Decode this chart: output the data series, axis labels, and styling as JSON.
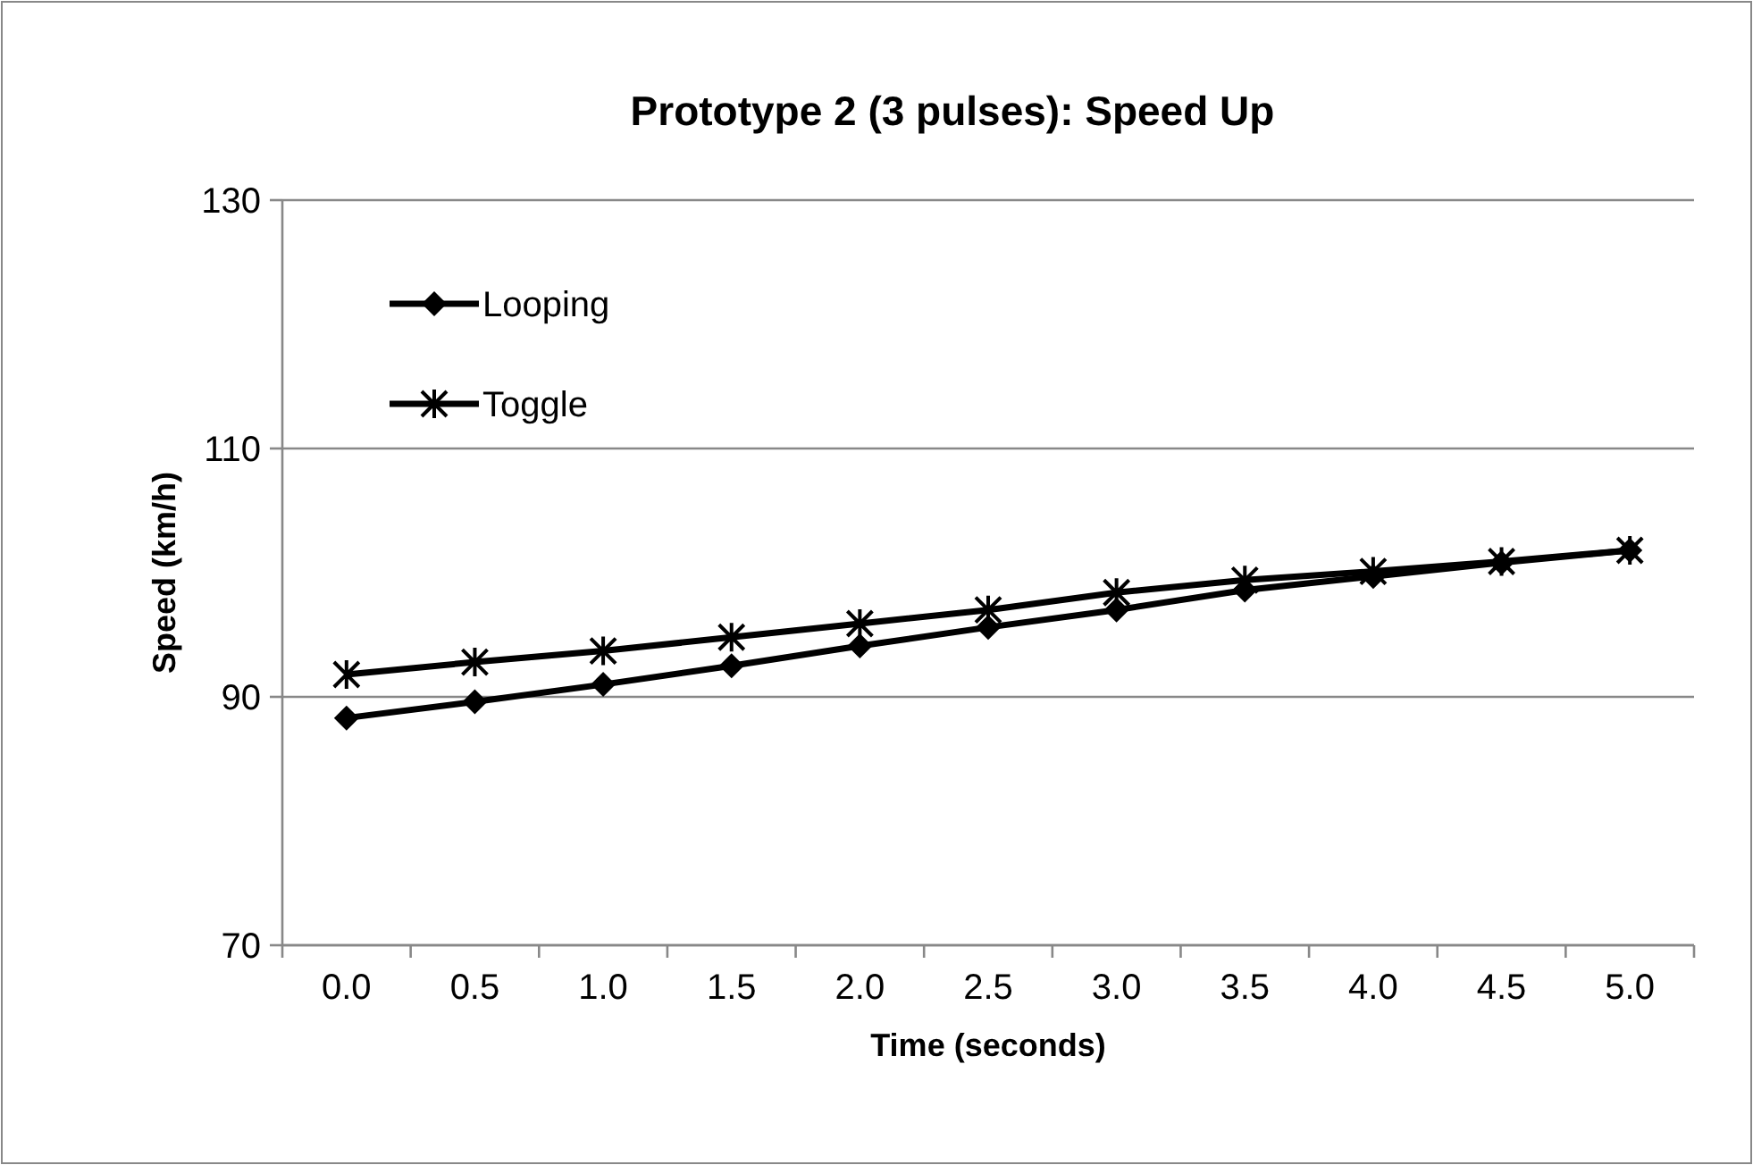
{
  "chart_data": {
    "type": "line",
    "title": "Prototype 2 (3 pulses): Speed Up",
    "xlabel": "Time (seconds)",
    "ylabel": "Speed (km/h)",
    "categories": [
      "0.0",
      "0.5",
      "1.0",
      "1.5",
      "2.0",
      "2.5",
      "3.0",
      "3.5",
      "4.0",
      "4.5",
      "5.0"
    ],
    "series": [
      {
        "name": "Looping",
        "color": "#000000",
        "marker": "diamond",
        "values": [
          88.3,
          89.6,
          91.0,
          92.5,
          94.1,
          95.6,
          97.0,
          98.6,
          99.7,
          100.8,
          101.8
        ]
      },
      {
        "name": "Toggle",
        "color": "#000000",
        "marker": "cross",
        "values": [
          91.8,
          92.8,
          93.7,
          94.8,
          95.9,
          97.0,
          98.4,
          99.4,
          100.1,
          100.9,
          101.8
        ]
      }
    ],
    "ylim": [
      70,
      130
    ],
    "yticks": [
      70,
      90,
      110,
      130
    ],
    "grid": "y",
    "legend": "top left",
    "line_style": "solid"
  }
}
